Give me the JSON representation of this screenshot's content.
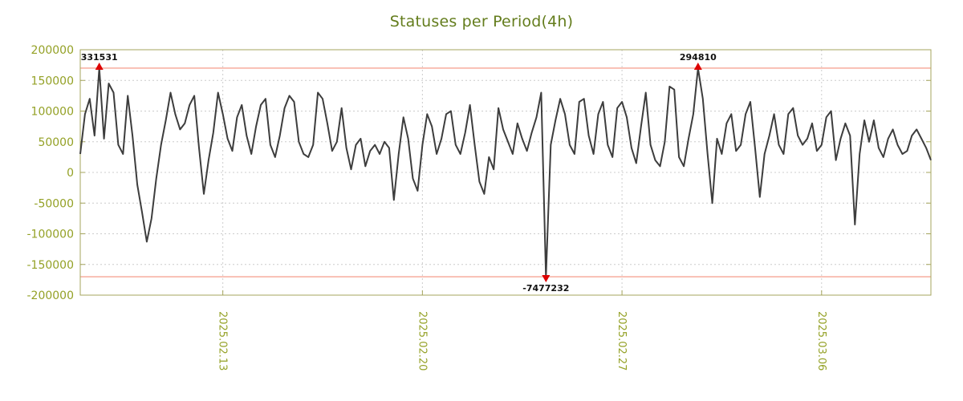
{
  "colors": {
    "title": "#647d1d",
    "axis_text": "#94a126",
    "border": "#a4a45c",
    "grid": "#cccccc",
    "line": "#3d3d3d",
    "clip_line": "#f4927e",
    "marker": "#dd0000",
    "marker_label": "#111111",
    "background": "#ffffff"
  },
  "chart_data": {
    "type": "line",
    "title": "Statuses per Period(4h)",
    "xlabel": "",
    "ylabel": "",
    "x_start": "2025.02.08",
    "interval_hours": 4,
    "ylim": [
      -200000,
      200000
    ],
    "y_ticks": [
      200000,
      150000,
      100000,
      50000,
      0,
      -50000,
      -100000,
      -150000,
      -200000
    ],
    "x_ticks": [
      {
        "day": 5,
        "label": "2025.02.13"
      },
      {
        "day": 12,
        "label": "2025.02.20"
      },
      {
        "day": 19,
        "label": "2025.02.27"
      },
      {
        "day": 26,
        "label": "2025.03.06"
      }
    ],
    "clip_limit": 170000,
    "grid": true,
    "legend": false,
    "annotations": [
      {
        "index": 4,
        "label": "331531",
        "direction": "up"
      },
      {
        "index": 98,
        "label": "-7477232",
        "direction": "down"
      },
      {
        "index": 130,
        "label": "294810",
        "direction": "up"
      }
    ],
    "values": [
      30000,
      95000,
      120000,
      60000,
      331531,
      55000,
      145000,
      130000,
      45000,
      30000,
      125000,
      60000,
      -20000,
      -65000,
      -113000,
      -75000,
      -10000,
      45000,
      85000,
      130000,
      95000,
      70000,
      80000,
      110000,
      125000,
      40000,
      -35000,
      20000,
      65000,
      130000,
      95000,
      55000,
      35000,
      90000,
      110000,
      60000,
      30000,
      75000,
      110000,
      120000,
      45000,
      25000,
      60000,
      105000,
      125000,
      115000,
      50000,
      30000,
      25000,
      45000,
      130000,
      120000,
      80000,
      35000,
      50000,
      105000,
      40000,
      5000,
      45000,
      55000,
      10000,
      35000,
      45000,
      30000,
      50000,
      40000,
      -45000,
      30000,
      90000,
      55000,
      -10000,
      -30000,
      45000,
      95000,
      75000,
      30000,
      55000,
      95000,
      100000,
      45000,
      30000,
      65000,
      110000,
      45000,
      -15000,
      -35000,
      25000,
      5000,
      105000,
      70000,
      50000,
      30000,
      80000,
      55000,
      35000,
      65000,
      90000,
      130000,
      -7477232,
      45000,
      85000,
      120000,
      95000,
      45000,
      30000,
      115000,
      120000,
      60000,
      30000,
      95000,
      115000,
      45000,
      25000,
      105000,
      115000,
      90000,
      40000,
      15000,
      75000,
      130000,
      45000,
      20000,
      10000,
      50000,
      140000,
      135000,
      25000,
      10000,
      55000,
      95000,
      294810,
      120000,
      30000,
      -50000,
      55000,
      30000,
      80000,
      95000,
      35000,
      45000,
      95000,
      115000,
      40000,
      -40000,
      30000,
      60000,
      95000,
      45000,
      30000,
      95000,
      105000,
      60000,
      45000,
      55000,
      80000,
      35000,
      45000,
      90000,
      100000,
      20000,
      55000,
      80000,
      60000,
      -85000,
      30000,
      85000,
      50000,
      85000,
      40000,
      25000,
      55000,
      70000,
      45000,
      30000,
      35000,
      60000,
      70000,
      55000,
      40000,
      20000
    ]
  }
}
